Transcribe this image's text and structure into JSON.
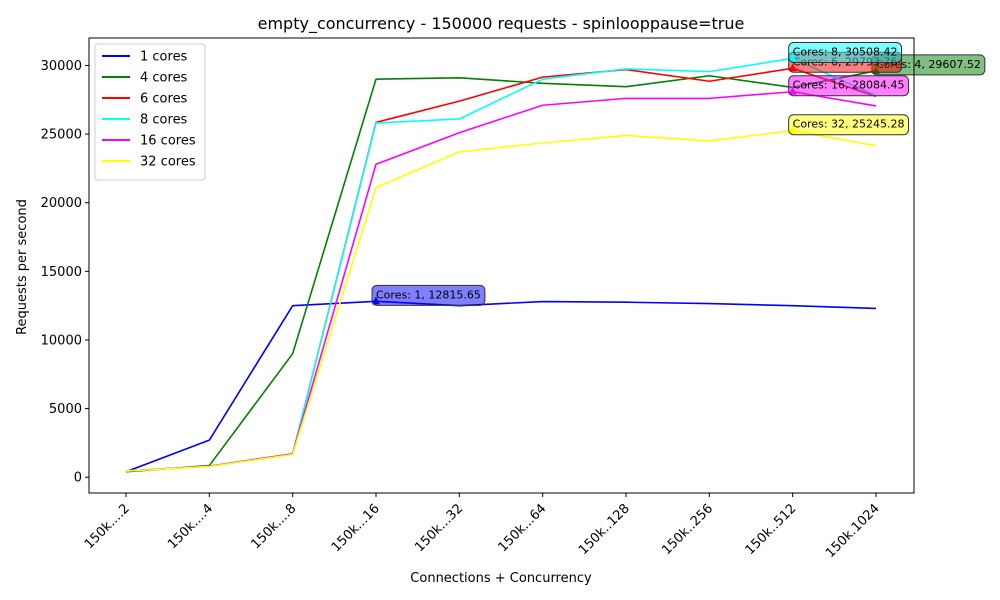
{
  "chart_data": {
    "type": "line",
    "title": "empty_concurrency - 150000 requests - spinlooppause=true",
    "xlabel": "Connections + Concurrency",
    "ylabel": "Requests per second",
    "categories": [
      "150k....2",
      "150k....4",
      "150k....8",
      "150k...16",
      "150k...32",
      "150k...64",
      "150k..128",
      "150k..256",
      "150k..512",
      "150k.1024"
    ],
    "ylim": [
      -1150,
      32000
    ],
    "yticks": [
      0,
      5000,
      10000,
      15000,
      20000,
      25000,
      30000
    ],
    "grid": false,
    "legend": "top-left",
    "series": [
      {
        "name": "1 cores",
        "color": "#0000ff",
        "values": [
          400,
          2700,
          12500,
          12815.65,
          12500,
          12800,
          12750,
          12650,
          12500,
          12300
        ]
      },
      {
        "name": "4 cores",
        "color": "#008000",
        "values": [
          400,
          850,
          9000,
          29000,
          29100,
          28700,
          28450,
          29250,
          28400,
          29607.52
        ]
      },
      {
        "name": "6 cores",
        "color": "#ff0000",
        "values": [
          450,
          800,
          1700,
          25850,
          27400,
          29150,
          29700,
          28850,
          29793.76,
          27750
        ]
      },
      {
        "name": "8 cores",
        "color": "#00ffff",
        "values": [
          450,
          800,
          1700,
          25800,
          26100,
          29000,
          29750,
          29550,
          30508.42,
          27800
        ]
      },
      {
        "name": "16 cores",
        "color": "#ff00ff",
        "values": [
          450,
          800,
          1700,
          22800,
          25100,
          27100,
          27600,
          27600,
          28084.45,
          27050
        ]
      },
      {
        "name": "32 cores",
        "color": "#ffff00",
        "values": [
          450,
          780,
          1650,
          21100,
          23700,
          24350,
          24900,
          24500,
          25245.28,
          24150
        ]
      }
    ],
    "annotations": [
      {
        "text": "Cores: 1, 12815.65",
        "series": 0,
        "category": 3,
        "color": "#0000ff"
      },
      {
        "text": "Cores: 4, 29607.52",
        "series": 1,
        "category": 9,
        "color": "#008000"
      },
      {
        "text": "Cores: 6, 29793.76",
        "series": 2,
        "category": 8,
        "color": "#ff0000"
      },
      {
        "text": "Cores: 8, 30508.42",
        "series": 3,
        "category": 8,
        "color": "#00ffff"
      },
      {
        "text": "Cores: 16, 28084.45",
        "series": 4,
        "category": 8,
        "color": "#ff00ff"
      },
      {
        "text": "Cores: 32, 25245.28",
        "series": 5,
        "category": 8,
        "color": "#ffff00"
      }
    ]
  }
}
